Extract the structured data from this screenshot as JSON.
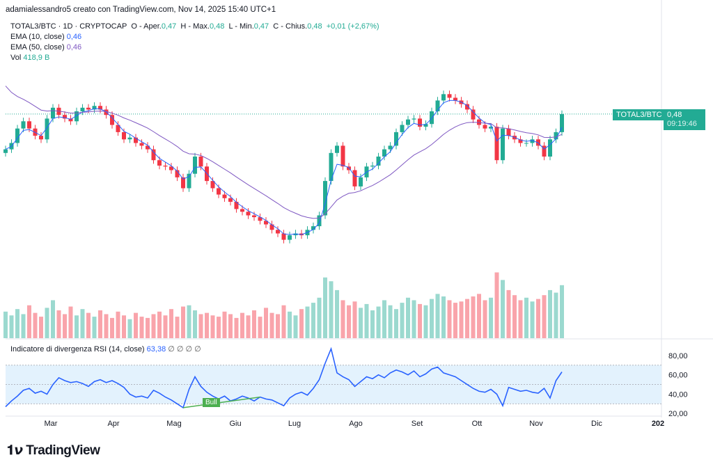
{
  "header": {
    "credit": "adamialessandro5 creato con TradingView.com, Nov 14, 2025 15:40 UTC+1"
  },
  "legend": {
    "symbol": "TOTAL3/BTC · 1D · CRYPTOCAP",
    "o_label": "O - Aper.",
    "o": "0,47",
    "h_label": "H - Max.",
    "h": "0,48",
    "l_label": "L - Min.",
    "l": "0,47",
    "c_label": "C - Chius.",
    "c": "0,48",
    "change": "+0,01 (+2,67%)",
    "ema10_label": "EMA (10, close)",
    "ema10": "0,46",
    "ema50_label": "EMA (50, close)",
    "ema50": "0,46",
    "vol_label": "Vol",
    "vol": "418,9 B"
  },
  "price_label": {
    "symbol": "TOTAL3/BTC",
    "price": "0,48",
    "countdown": "09:19:46"
  },
  "rsi": {
    "label": "Indicatore di divergenza RSI (14, close)",
    "value": "63,38",
    "placeholders": "∅ ∅ ∅ ∅",
    "bull_label": "Bull"
  },
  "colors": {
    "up": "#22ab94",
    "down": "#f23645",
    "ema10": "#2962ff",
    "ema50": "#7e57c2",
    "rsi": "#2962ff",
    "rsi_band": "#e3f2fd",
    "bull": "#4caf50"
  },
  "branding": {
    "logo": "TradingView"
  },
  "chart_data": [
    {
      "type": "candlestick",
      "title": "TOTAL3/BTC",
      "x_ticks": [
        "Mar",
        "Apr",
        "Mag",
        "Giu",
        "Lug",
        "Ago",
        "Set",
        "Ott",
        "Nov",
        "Dic",
        "202"
      ],
      "last_price": 0.48,
      "ylim": [
        0.233,
        0.533
      ],
      "closes": [
        0.441,
        0.448,
        0.464,
        0.472,
        0.464,
        0.456,
        0.452,
        0.475,
        0.487,
        0.479,
        0.475,
        0.472,
        0.483,
        0.487,
        0.485,
        0.489,
        0.485,
        0.479,
        0.468,
        0.46,
        0.452,
        0.454,
        0.448,
        0.445,
        0.441,
        0.429,
        0.423,
        0.422,
        0.418,
        0.41,
        0.398,
        0.414,
        0.433,
        0.422,
        0.406,
        0.398,
        0.391,
        0.387,
        0.383,
        0.375,
        0.372,
        0.368,
        0.366,
        0.362,
        0.358,
        0.352,
        0.348,
        0.341,
        0.346,
        0.348,
        0.346,
        0.352,
        0.356,
        0.368,
        0.406,
        0.437,
        0.445,
        0.422,
        0.418,
        0.4,
        0.41,
        0.422,
        0.423,
        0.433,
        0.441,
        0.445,
        0.46,
        0.468,
        0.474,
        0.475,
        0.466,
        0.469,
        0.483,
        0.495,
        0.502,
        0.498,
        0.495,
        0.491,
        0.485,
        0.474,
        0.468,
        0.464,
        0.466,
        0.429,
        0.464,
        0.456,
        0.452,
        0.448,
        0.448,
        0.452,
        0.445,
        0.433,
        0.452,
        0.46,
        0.48
      ],
      "indicators": [
        "EMA (10, close)",
        "EMA (50, close)"
      ]
    },
    {
      "type": "bar",
      "title": "Vol",
      "unit": "B",
      "values": [
        210,
        180,
        230,
        190,
        260,
        200,
        170,
        240,
        300,
        220,
        190,
        250,
        180,
        230,
        200,
        170,
        220,
        190,
        160,
        210,
        180,
        150,
        200,
        170,
        160,
        190,
        210,
        180,
        230,
        170,
        250,
        260,
        220,
        190,
        200,
        180,
        170,
        210,
        190,
        160,
        200,
        180,
        220,
        170,
        240,
        200,
        190,
        260,
        210,
        180,
        230,
        250,
        280,
        320,
        480,
        450,
        380,
        300,
        260,
        290,
        240,
        270,
        220,
        250,
        300,
        260,
        230,
        280,
        320,
        300,
        270,
        260,
        310,
        350,
        330,
        300,
        280,
        290,
        310,
        330,
        350,
        300,
        320,
        520,
        460,
        380,
        340,
        300,
        320,
        290,
        310,
        340,
        380,
        360,
        419
      ],
      "ylim": [
        0,
        550
      ]
    },
    {
      "type": "line",
      "title": "Indicatore di divergenza RSI (14, close)",
      "y_ticks": [
        "80,00",
        "60,00",
        "40,00",
        "20,00"
      ],
      "ylim": [
        18,
        90
      ],
      "bands": [
        30,
        50,
        70
      ],
      "values": [
        27,
        33,
        38,
        44,
        46,
        41,
        43,
        40,
        50,
        57,
        54,
        52,
        53,
        51,
        48,
        53,
        55,
        52,
        54,
        51,
        47,
        40,
        37,
        38,
        36,
        44,
        41,
        37,
        34,
        30,
        26,
        45,
        58,
        48,
        42,
        38,
        35,
        38,
        33,
        35,
        38,
        36,
        33,
        37,
        35,
        34,
        31,
        28,
        36,
        40,
        42,
        39,
        46,
        55,
        72,
        87,
        62,
        58,
        55,
        48,
        53,
        58,
        56,
        60,
        57,
        62,
        65,
        63,
        60,
        64,
        58,
        61,
        66,
        68,
        62,
        60,
        58,
        54,
        50,
        46,
        43,
        42,
        45,
        40,
        28,
        47,
        45,
        43,
        44,
        42,
        41,
        46,
        36,
        54,
        63
      ]
    }
  ]
}
